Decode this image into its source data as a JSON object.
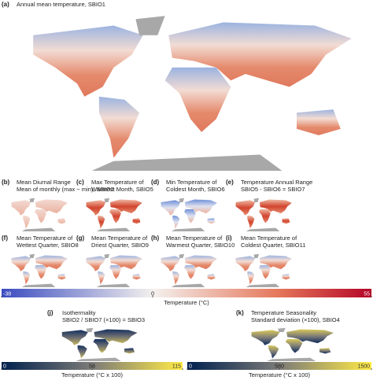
{
  "panels": [
    {
      "label": "(a)",
      "lines": [
        "Annual mean temperature, SBIO1"
      ]
    },
    {
      "label": "(b)",
      "lines": [
        "Mean Diurnal Range",
        "Mean of monthly (max − min), SBIO2"
      ]
    },
    {
      "label": "(c)",
      "lines": [
        "Max Temperature of",
        "Warmest Month, SBIO5"
      ]
    },
    {
      "label": "(d)",
      "lines": [
        "Min Temperature of",
        "Coldest Month, SBIO6"
      ]
    },
    {
      "label": "(e)",
      "lines": [
        "Temperature Annual Range",
        "SBIO5 - SBIO6 = SBIO7"
      ]
    },
    {
      "label": "(f)",
      "lines": [
        "Mean Temperature of",
        "Wettest Quarter, SBIO8"
      ]
    },
    {
      "label": "(g)",
      "lines": [
        "Mean Temperature of",
        "Driest Quarter, SBIO9"
      ]
    },
    {
      "label": "(h)",
      "lines": [
        "Mean Temperature of",
        "Warmest Quarter, SBIO10"
      ]
    },
    {
      "label": "(i)",
      "lines": [
        "Mean Temperature of",
        "Coldest Quarter, SBIO11"
      ]
    },
    {
      "label": "(j)",
      "lines": [
        "Isothermality",
        "SBIO2 / SBIO7 (×100) = SBIO3"
      ]
    },
    {
      "label": "(k)",
      "lines": [
        "Temperature Seasonality",
        "Standard deviation (×100), SBIO4"
      ]
    }
  ],
  "colorbars": [
    {
      "title": "Temperature (°C)",
      "lim": [
        -38,
        55
      ],
      "ticks": [
        -38,
        0,
        55
      ],
      "scale": "linear"
    },
    {
      "title": "Temperature (°C x 100)",
      "lim": [
        0,
        115
      ],
      "ticks": [
        0,
        58,
        115
      ],
      "scale": "diverging"
    },
    {
      "title": "Temperature (°C x 100)",
      "lim": [
        0,
        1500
      ],
      "ticks": [
        0,
        580,
        1500
      ],
      "scale": "diverging"
    }
  ]
}
